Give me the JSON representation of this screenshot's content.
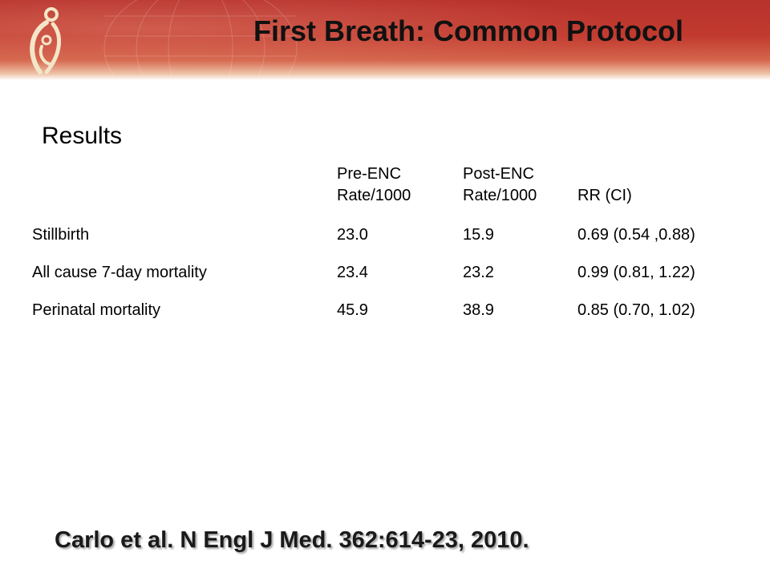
{
  "header": {
    "title": "First Breath: Common Protocol",
    "logo_icon": "mother-child-logo-icon",
    "background_color": "#b8322c"
  },
  "section": {
    "heading": "Results"
  },
  "table": {
    "columns": [
      {
        "line1": "",
        "line2": ""
      },
      {
        "line1": "Pre-ENC",
        "line2": "Rate/1000"
      },
      {
        "line1": "Post-ENC",
        "line2": "Rate/1000"
      },
      {
        "line1": "",
        "line2": "RR (CI)"
      }
    ],
    "rows": [
      {
        "outcome": "Stillbirth",
        "pre": "23.0",
        "post": "15.9",
        "rr": "0.69 (0.54 ,0.88)"
      },
      {
        "outcome": "All cause 7-day mortality",
        "pre": "23.4",
        "post": "23.2",
        "rr": "0.99 (0.81, 1.22)"
      },
      {
        "outcome": "Perinatal mortality",
        "pre": "45.9",
        "post": "38.9",
        "rr": "0.85 (0.70, 1.02)"
      }
    ]
  },
  "citation": "Carlo et al.  N Engl J Med. 362:614-23, 2010."
}
